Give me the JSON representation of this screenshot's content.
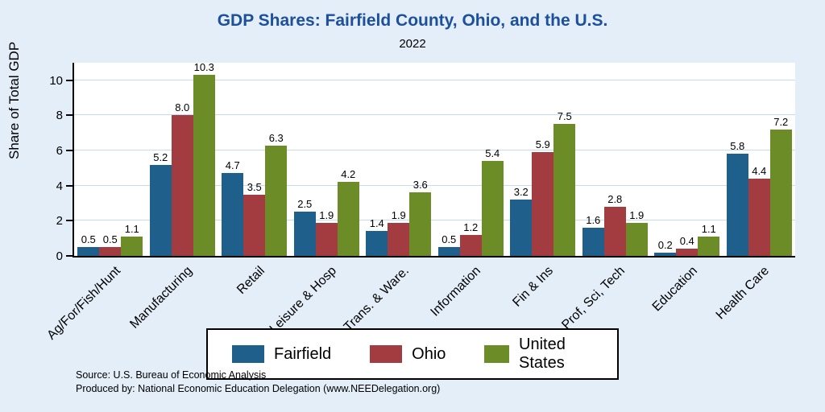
{
  "title": "GDP Shares: Fairfield County, Ohio, and the U.S.",
  "subtitle": "2022",
  "ylabel": "Share of Total GDP",
  "notes": {
    "source": "Source: U.S. Bureau of Economic Analysis",
    "produced_by": "Produced by: National Economic Education Delegation (www.NEEDelegation.org)"
  },
  "chart_data": {
    "type": "bar",
    "title": "GDP Shares: Fairfield County, Ohio, and the U.S.",
    "subtitle": "2022",
    "xlabel": "",
    "ylabel": "Share of Total GDP",
    "ylim": [
      0,
      11
    ],
    "yticks": [
      0,
      2,
      4,
      6,
      8,
      10
    ],
    "grid": true,
    "legend_position": "bottom",
    "categories": [
      "Ag/For/Fish/Hunt",
      "Manufacturing",
      "Retail",
      "Leisure & Hosp",
      "Trans. & Ware.",
      "Information",
      "Fin & Ins",
      "Prof, Sci, Tech",
      "Education",
      "Health Care"
    ],
    "series": [
      {
        "name": "Fairfield",
        "color": "#1f5f8b",
        "values": [
          0.5,
          5.2,
          4.7,
          2.5,
          1.4,
          0.5,
          3.2,
          1.6,
          0.2,
          5.8
        ]
      },
      {
        "name": "Ohio",
        "color": "#a33c40",
        "values": [
          0.5,
          8.0,
          3.5,
          1.9,
          1.9,
          1.2,
          5.9,
          2.8,
          0.4,
          4.4
        ]
      },
      {
        "name": "United States",
        "color": "#6b8c26",
        "values": [
          1.1,
          10.3,
          6.3,
          4.2,
          3.6,
          5.4,
          7.5,
          1.9,
          1.1,
          7.2
        ]
      }
    ]
  }
}
